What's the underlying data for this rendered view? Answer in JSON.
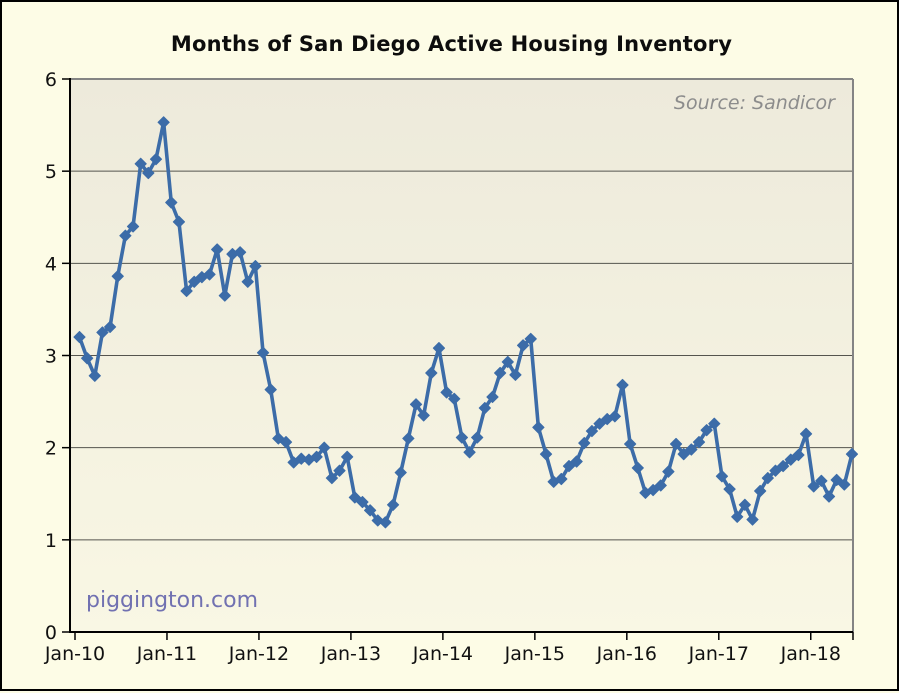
{
  "title": "Months of San Diego Active Housing Inventory",
  "source_note": "Source: Sandicor",
  "watermark": "piggington.com",
  "colors": {
    "line": "#3c6ca8",
    "page_background": "#fdfce6",
    "plot_background_top": "#edeadb",
    "plot_background_bottom": "#f9f7e4",
    "gridline": "#55544e",
    "axis": "#000000",
    "plot_border": "#848484",
    "title_text": "#0d0d0d",
    "source_text": "#8c8c8c",
    "watermark_text": "#7171b1"
  },
  "chart_data": {
    "type": "line",
    "title": "Months of San Diego Active Housing Inventory",
    "xlabel": "",
    "ylabel": "",
    "ylim": [
      0,
      6
    ],
    "grid": "horizontal",
    "marker": "diamond",
    "start": "2010-01",
    "frequency": "monthly",
    "x_tick_labels": [
      "Jan-10",
      "Jan-11",
      "Jan-12",
      "Jan-13",
      "Jan-14",
      "Jan-15",
      "Jan-16",
      "Jan-17",
      "Jan-18"
    ],
    "y_tick_labels": [
      "0",
      "1",
      "2",
      "3",
      "4",
      "5",
      "6"
    ],
    "values": [
      3.2,
      2.97,
      2.78,
      3.25,
      3.31,
      3.86,
      4.3,
      4.4,
      5.08,
      4.98,
      5.13,
      5.53,
      4.66,
      4.45,
      3.7,
      3.8,
      3.85,
      3.88,
      4.15,
      3.65,
      4.1,
      4.12,
      3.8,
      3.97,
      3.03,
      2.63,
      2.1,
      2.06,
      1.84,
      1.88,
      1.87,
      1.9,
      2.0,
      1.67,
      1.75,
      1.9,
      1.46,
      1.41,
      1.32,
      1.21,
      1.19,
      1.38,
      1.73,
      2.1,
      2.47,
      2.35,
      2.81,
      3.08,
      2.6,
      2.53,
      2.11,
      1.95,
      2.11,
      2.43,
      2.55,
      2.81,
      2.93,
      2.79,
      3.11,
      3.18,
      2.22,
      1.93,
      1.63,
      1.66,
      1.8,
      1.85,
      2.05,
      2.18,
      2.26,
      2.31,
      2.34,
      2.68,
      2.04,
      1.78,
      1.51,
      1.54,
      1.59,
      1.74,
      2.04,
      1.93,
      1.98,
      2.06,
      2.19,
      2.26,
      1.69,
      1.55,
      1.25,
      1.38,
      1.22,
      1.53,
      1.67,
      1.75,
      1.8,
      1.87,
      1.92,
      2.15,
      1.58,
      1.64,
      1.47,
      1.65,
      1.6,
      1.93
    ]
  }
}
